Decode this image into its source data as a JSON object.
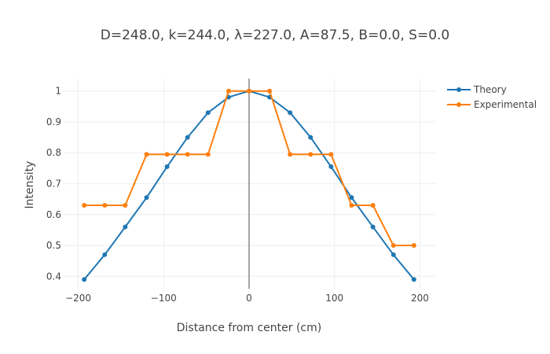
{
  "chart_data": {
    "type": "line",
    "title": "D=248.0, k=244.0, λ=227.0, A=87.5, B=0.0, S=0.0",
    "xlabel": "Distance from center (cm)",
    "ylabel": "Intensity",
    "xlim": [
      -218,
      218
    ],
    "ylim": [
      0.36,
      1.04
    ],
    "xticks": [
      -200,
      -100,
      0,
      100,
      200
    ],
    "xtick_labels": [
      "−200",
      "−100",
      "0",
      "100",
      "200"
    ],
    "yticks": [
      0.4,
      0.5,
      0.6,
      0.7,
      0.8,
      0.9,
      1
    ],
    "ytick_labels": [
      "0.4",
      "0.5",
      "0.6",
      "0.7",
      "0.8",
      "0.9",
      "1"
    ],
    "grid": true,
    "vertical_line_x": 0,
    "legend_position": "top-right",
    "series": [
      {
        "name": "Theory",
        "color": "#1f77b4",
        "x": [
          -193,
          -169,
          -145,
          -120,
          -96,
          -72,
          -48,
          -24,
          0,
          24,
          48,
          72,
          96,
          120,
          145,
          169,
          193
        ],
        "y": [
          0.39,
          0.47,
          0.56,
          0.655,
          0.755,
          0.85,
          0.93,
          0.98,
          1.0,
          0.98,
          0.93,
          0.85,
          0.755,
          0.655,
          0.56,
          0.47,
          0.39
        ]
      },
      {
        "name": "Experimental",
        "color": "#ff7f0e",
        "x": [
          -193,
          -169,
          -145,
          -120,
          -96,
          -72,
          -48,
          -24,
          0,
          24,
          48,
          72,
          96,
          120,
          145,
          169,
          193
        ],
        "y": [
          0.63,
          0.63,
          0.63,
          0.795,
          0.795,
          0.795,
          0.795,
          1.0,
          1.0,
          1.0,
          0.795,
          0.795,
          0.795,
          0.63,
          0.63,
          0.5,
          0.5
        ]
      }
    ]
  }
}
